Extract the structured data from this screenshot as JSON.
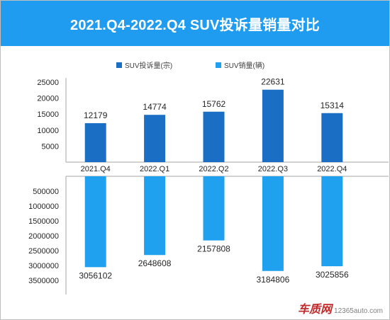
{
  "chart_data": {
    "type": "bar",
    "title": "2021.Q4-2022.Q4 SUV投诉量销量对比",
    "categories": [
      "2021.Q4",
      "2022.Q1",
      "2022.Q2",
      "2022.Q3",
      "2022.Q4"
    ],
    "series": [
      {
        "name": "SUV投诉量(宗)",
        "values": [
          12179,
          14774,
          15762,
          22631,
          15314
        ],
        "color": "#1a6fc4"
      },
      {
        "name": "SUV销量(辆)",
        "values": [
          3056102,
          2648608,
          2157808,
          3184806,
          3025856
        ],
        "color": "#1fa1ef"
      }
    ],
    "top_axis": {
      "ticks": [
        "25000",
        "20000",
        "15000",
        "10000",
        "5000"
      ],
      "ylim": [
        0,
        25000
      ]
    },
    "bottom_axis": {
      "ticks": [
        "500000",
        "1000000",
        "1500000",
        "2000000",
        "2500000",
        "3000000",
        "3500000"
      ],
      "ylim": [
        0,
        3500000
      ],
      "inverted": true
    },
    "legend_placement": "top-center",
    "grid": false
  },
  "watermark": {
    "brand": "车质网",
    "site": "12365auto.com"
  }
}
